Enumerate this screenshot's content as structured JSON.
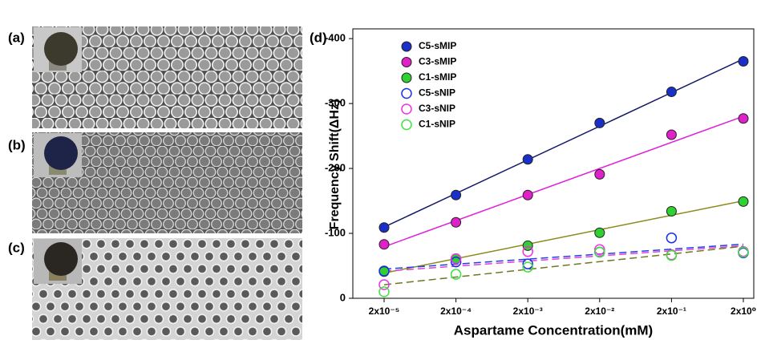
{
  "panel_labels": [
    "(a)",
    "(b)",
    "(c)"
  ],
  "chart_data": {
    "type": "scatter",
    "panel_label": "(d)",
    "x_label": "Aspartame Concentration(mM)",
    "y_label": "Frequency Shift(ΔHz)",
    "categories": [
      "2x10⁻⁵",
      "2x10⁻⁴",
      "2x10⁻³",
      "2x10⁻²",
      "2x10⁻¹",
      "2x10⁰"
    ],
    "ylim": [
      0,
      -415
    ],
    "yticks": [
      -400,
      -300,
      -200,
      -100,
      0
    ],
    "legend": "upper left",
    "fit": "linear",
    "series": [
      {
        "name": "C5-sMIP",
        "color": "#1a2fc8",
        "marker": "filled",
        "fit_color": "#141a6a",
        "line_style": "solid",
        "values": [
          -109,
          -159,
          -214,
          -270,
          -318,
          -365
        ]
      },
      {
        "name": "C3-sMIP",
        "color": "#e020c8",
        "marker": "filled",
        "fit_color": "#e020d8",
        "line_style": "solid",
        "values": [
          -83,
          -117,
          -159,
          -191,
          -252,
          -277
        ]
      },
      {
        "name": "C1-sMIP",
        "color": "#30d030",
        "marker": "filled",
        "fit_color": "#8a8a1a",
        "line_style": "solid",
        "values": [
          -41,
          -61,
          -81,
          -101,
          -134,
          -149
        ]
      },
      {
        "name": "C5-sNIP",
        "color": "#1a2fe8",
        "marker": "open",
        "fit_color": "#2040e8",
        "line_style": "dashed",
        "values": [
          -42,
          -56,
          -53,
          -71,
          -93,
          -70
        ]
      },
      {
        "name": "C3-sNIP",
        "color": "#f030e0",
        "marker": "open",
        "fit_color": "#e040d8",
        "line_style": "dashed",
        "values": [
          -21,
          -61,
          -72,
          -75,
          -67,
          -72
        ]
      },
      {
        "name": "C1-sNIP",
        "color": "#40e040",
        "marker": "open",
        "fit_color": "#6a7a1a",
        "line_style": "dashed",
        "values": [
          -10,
          -37,
          -48,
          -71,
          -66,
          -71
        ]
      }
    ]
  }
}
